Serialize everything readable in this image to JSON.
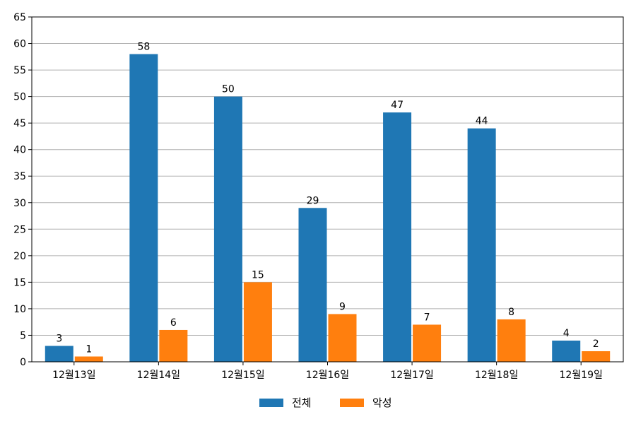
{
  "chart_data": {
    "type": "bar",
    "categories": [
      "12월13일",
      "12월14일",
      "12월15일",
      "12월16일",
      "12월17일",
      "12월18일",
      "12월19일"
    ],
    "series": [
      {
        "name": "전체",
        "values": [
          3,
          58,
          50,
          29,
          47,
          44,
          4
        ],
        "color": "#1f77b4"
      },
      {
        "name": "악성",
        "values": [
          1,
          6,
          15,
          9,
          7,
          8,
          2
        ],
        "color": "#ff7f0e"
      }
    ],
    "title": "",
    "xlabel": "",
    "ylabel": "",
    "ylim": [
      0,
      65
    ],
    "yticks": [
      0,
      5,
      10,
      15,
      20,
      25,
      30,
      35,
      40,
      45,
      50,
      55,
      60,
      65
    ],
    "grid": "horizontal",
    "legend_position": "bottom-center",
    "grid_color": "#b0b0b0"
  }
}
